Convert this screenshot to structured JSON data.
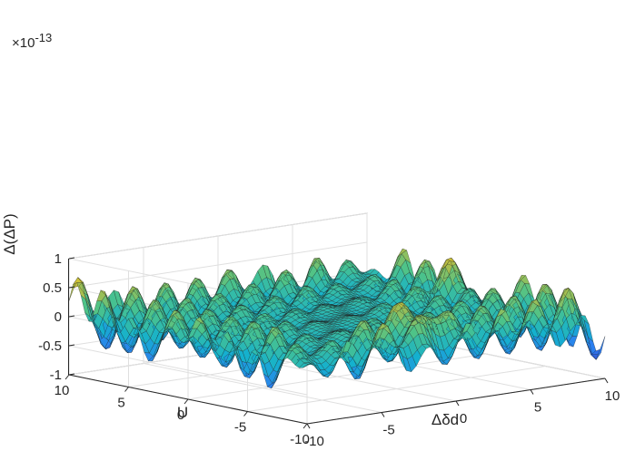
{
  "chart_data": {
    "type": "surface",
    "title": "",
    "xlabel": "Δδd",
    "ylabel": "U",
    "zlabel": "Δ(ΔP)",
    "z_exponent_label": "×10",
    "z_exponent_power": "-13",
    "xlim": [
      -10,
      10
    ],
    "ylim": [
      -10,
      10
    ],
    "zlim": [
      -1,
      1
    ],
    "x_ticks": [
      "-10",
      "-5",
      "0",
      "5",
      "10"
    ],
    "y_ticks": [
      "-10",
      "-5",
      "0",
      "5",
      "10"
    ],
    "z_ticks": [
      "-1",
      "-0.5",
      "0",
      "0.5",
      "1"
    ],
    "x_tick_values": [
      -10,
      -5,
      0,
      5,
      10
    ],
    "y_tick_values": [
      -10,
      -5,
      0,
      5,
      10
    ],
    "z_tick_values": [
      -1,
      -0.5,
      0,
      0.5,
      1
    ],
    "grid": true,
    "colormap": "parula",
    "colors": [
      "#3e26a8",
      "#2e7cf2",
      "#14b1ce",
      "#4cc38a",
      "#c8bd3a",
      "#f9fb0e"
    ],
    "surface_description": "Oscillatory error surface; near zero along the line U = Δδd, amplitude growing toward the corners, peaking near 0.9e-13 around Δδd=-1, U=-7"
  }
}
